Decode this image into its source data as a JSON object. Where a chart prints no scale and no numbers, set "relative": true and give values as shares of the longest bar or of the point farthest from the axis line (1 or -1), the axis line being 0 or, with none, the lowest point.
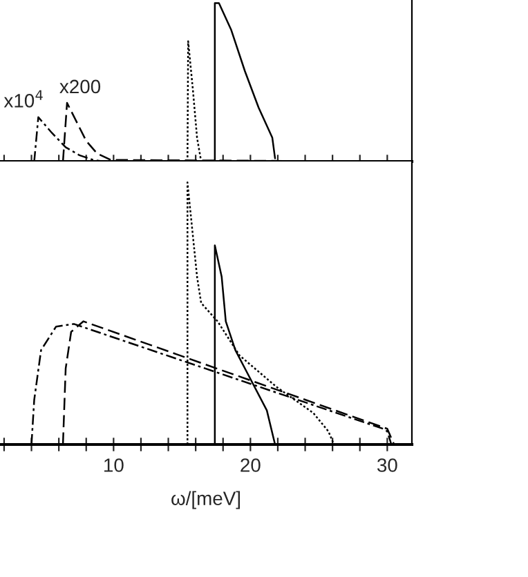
{
  "chart_data": [
    {
      "type": "line",
      "relative": true,
      "xlim": [
        1.7,
        31.8
      ],
      "tick_labels": false,
      "grid": false,
      "legend": false,
      "xticks": [
        {
          "value": 2,
          "label": null
        },
        {
          "value": 4,
          "label": null
        },
        {
          "value": 6,
          "label": null
        },
        {
          "value": 8,
          "label": null
        },
        {
          "value": 10,
          "label": null
        },
        {
          "value": 12,
          "label": null
        },
        {
          "value": 14,
          "label": null
        },
        {
          "value": 16,
          "label": null
        },
        {
          "value": 18,
          "label": null
        },
        {
          "value": 20,
          "label": null
        },
        {
          "value": 22,
          "label": null
        },
        {
          "value": 24,
          "label": null
        },
        {
          "value": 26,
          "label": null
        },
        {
          "value": 28,
          "label": null
        },
        {
          "value": 30,
          "label": null
        }
      ],
      "annotations": [
        {
          "text": "x10$^{4}$",
          "x": 4.5,
          "y": 0.28
        },
        {
          "text": "x200",
          "x": 6.6,
          "y": 0.37
        }
      ],
      "series": [
        {
          "color": "#000000",
          "line_style": "dashdot",
          "x": [
            4.2,
            4.5,
            5.5,
            6.5,
            7.5,
            8.5,
            9.3
          ],
          "values": [
            0,
            0.28,
            0.18,
            0.09,
            0.04,
            0.01,
            0
          ]
        },
        {
          "color": "#000000",
          "line_style": "dashed",
          "x": [
            6.3,
            6.6,
            7.3,
            8.0,
            8.8,
            9.8,
            30.0
          ],
          "values": [
            0,
            0.37,
            0.25,
            0.13,
            0.05,
            0.01,
            0
          ]
        },
        {
          "color": "#000000",
          "line_style": "dotted",
          "x": [
            15.4,
            15.45,
            15.8,
            16.1,
            16.4
          ],
          "values": [
            0,
            0.76,
            0.45,
            0.15,
            0
          ]
        },
        {
          "color": "#000000",
          "line_style": "solid",
          "x": [
            17.4,
            17.4,
            17.7,
            18.6,
            19.6,
            20.6,
            21.6,
            21.8
          ],
          "values": [
            0,
            1,
            1,
            0.83,
            0.57,
            0.34,
            0.15,
            0.02
          ]
        }
      ]
    },
    {
      "type": "line",
      "relative": true,
      "xlim": [
        1.7,
        31.8
      ],
      "tick_labels": "x",
      "grid": false,
      "legend": false,
      "xlabel": "ω/[meV]",
      "xticks": [
        {
          "value": 2,
          "label": null
        },
        {
          "value": 4,
          "label": null
        },
        {
          "value": 6,
          "label": null
        },
        {
          "value": 8,
          "label": null
        },
        10,
        {
          "value": 12,
          "label": null
        },
        {
          "value": 14,
          "label": null
        },
        {
          "value": 16,
          "label": null
        },
        {
          "value": 18,
          "label": null
        },
        20,
        {
          "value": 22,
          "label": null
        },
        {
          "value": 24,
          "label": null
        },
        {
          "value": 26,
          "label": null
        },
        {
          "value": 28,
          "label": null
        },
        30
      ],
      "series": [
        {
          "color": "#000000",
          "line_style": "dashdot",
          "x": [
            4.0,
            4.2,
            4.7,
            5.8,
            7.1,
            29.7,
            30.0,
            30.3
          ],
          "values": [
            0,
            0.17,
            0.36,
            0.45,
            0.46,
            0.06,
            0.05,
            0
          ]
        },
        {
          "color": "#000000",
          "line_style": "dashed",
          "x": [
            6.3,
            6.5,
            6.9,
            7.8,
            30.0,
            30.5
          ],
          "values": [
            0,
            0.29,
            0.43,
            0.47,
            0.06,
            0
          ]
        },
        {
          "color": "#000000",
          "line_style": "dotted",
          "x": [
            15.4,
            15.4,
            16.1,
            16.4,
            17.6,
            19.2,
            21.9,
            24.6,
            25.7,
            26.1
          ],
          "values": [
            0,
            1,
            0.64,
            0.54,
            0.47,
            0.34,
            0.22,
            0.12,
            0.05,
            0
          ]
        },
        {
          "color": "#000000",
          "line_style": "solid",
          "x": [
            17.4,
            17.4,
            17.9,
            18.2,
            18.9,
            19.9,
            21.2,
            21.8
          ],
          "values": [
            0,
            0.76,
            0.64,
            0.47,
            0.36,
            0.26,
            0.13,
            0
          ]
        }
      ]
    }
  ]
}
